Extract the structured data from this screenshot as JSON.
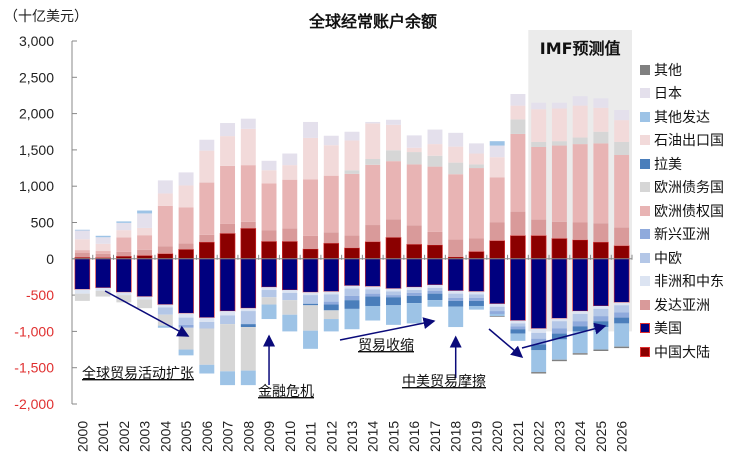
{
  "chart_data": {
    "type": "bar",
    "stacked": true,
    "title": "全球经常账户余额",
    "unit_label": "（十亿美元）",
    "xlabel": "",
    "ylabel": "十亿美元",
    "ylim": [
      -2000,
      3000
    ],
    "yticks": [
      "3,000",
      "2,500",
      "2,000",
      "1,500",
      "1,000",
      "500",
      "0",
      "-500",
      "-1,000",
      "-1,500",
      "-2,000"
    ],
    "ytick_values": [
      3000,
      2500,
      2000,
      1500,
      1000,
      500,
      0,
      -500,
      -1000,
      -1500,
      -2000
    ],
    "negative_tick_color": "#e03030",
    "categories": [
      "2000",
      "2001",
      "2002",
      "2003",
      "2004",
      "2005",
      "2006",
      "2007",
      "2008",
      "2009",
      "2010",
      "2011",
      "2012",
      "2013",
      "2014",
      "2015",
      "2016",
      "2017",
      "2018",
      "2019",
      "2020",
      "2021",
      "2022",
      "2023",
      "2024",
      "2025",
      "2026"
    ],
    "forecast_region": {
      "label": "IMF预测值",
      "from": "2022",
      "to": "2026"
    },
    "legend_position": "right",
    "series": [
      {
        "name": "中国大陆",
        "color": "#8b0000",
        "values": [
          20,
          17,
          35,
          45,
          70,
          130,
          230,
          350,
          420,
          240,
          240,
          135,
          215,
          150,
          235,
          295,
          200,
          190,
          25,
          100,
          250,
          320,
          320,
          280,
          260,
          230,
          180
        ]
      },
      {
        "name": "发达亚洲",
        "color": "#d99a9a",
        "values": [
          60,
          50,
          60,
          80,
          100,
          80,
          100,
          130,
          90,
          150,
          180,
          180,
          150,
          170,
          230,
          250,
          260,
          180,
          240,
          180,
          250,
          330,
          220,
          230,
          240,
          260,
          250
        ]
      },
      {
        "name": "欧洲债权国",
        "color": "#e8b4b4",
        "values": [
          40,
          40,
          200,
          200,
          560,
          500,
          720,
          800,
          780,
          650,
          670,
          780,
          780,
          850,
          830,
          800,
          840,
          900,
          900,
          970,
          620,
          1070,
          1000,
          1050,
          1080,
          1100,
          1000
        ]
      },
      {
        "name": "欧洲债务国",
        "color": "#d6d6d6",
        "values": [
          0,
          0,
          0,
          0,
          0,
          0,
          0,
          0,
          0,
          0,
          0,
          0,
          0,
          50,
          80,
          150,
          170,
          150,
          160,
          50,
          0,
          200,
          70,
          60,
          90,
          160,
          180
        ]
      },
      {
        "name": "石油出口国",
        "color": "#f2dada",
        "values": [
          150,
          100,
          100,
          100,
          170,
          300,
          440,
          410,
          500,
          180,
          200,
          570,
          420,
          410,
          490,
          350,
          60,
          160,
          220,
          150,
          280,
          190,
          450,
          450,
          440,
          330,
          300
        ]
      },
      {
        "name": "日本",
        "color": "#e4e0ec",
        "values": [
          120,
          90,
          100,
          200,
          180,
          180,
          150,
          180,
          140,
          130,
          160,
          220,
          130,
          120,
          20,
          70,
          170,
          200,
          190,
          140,
          160,
          160,
          90,
          80,
          130,
          130,
          140
        ]
      },
      {
        "name": "其他发达",
        "color": "#9dc3e6",
        "values": [
          10,
          20,
          20,
          40,
          0,
          0,
          0,
          0,
          0,
          0,
          0,
          0,
          0,
          0,
          0,
          0,
          0,
          0,
          0,
          0,
          60,
          0,
          0,
          0,
          0,
          0,
          0
        ]
      },
      {
        "name": "拉美",
        "color": "#4a7ebb",
        "values": [
          0,
          0,
          0,
          0,
          0,
          0,
          0,
          0,
          0,
          0,
          0,
          0,
          0,
          0,
          0,
          0,
          0,
          0,
          0,
          0,
          0,
          0,
          0,
          0,
          0,
          0,
          0
        ]
      },
      {
        "name": "其他",
        "color": "#808080",
        "values": [
          0,
          0,
          0,
          0,
          0,
          0,
          0,
          0,
          0,
          0,
          0,
          0,
          0,
          0,
          0,
          0,
          0,
          0,
          0,
          0,
          0,
          0,
          0,
          0,
          0,
          0,
          0
        ]
      }
    ],
    "negative_series": [
      {
        "name": "美国",
        "color": "#00007f",
        "values": [
          -420,
          -400,
          -460,
          -520,
          -630,
          -750,
          -810,
          -720,
          -680,
          -390,
          -430,
          -460,
          -450,
          -370,
          -380,
          -410,
          -390,
          -360,
          -440,
          -450,
          -620,
          -850,
          -960,
          -820,
          -720,
          -650,
          -600
        ]
      },
      {
        "name": "非洲和中东",
        "color": "#dce4f2",
        "values": [
          -60,
          -40,
          -40,
          -40,
          -40,
          -60,
          -60,
          -60,
          -40,
          -40,
          -40,
          -40,
          -40,
          -40,
          -40,
          -40,
          -40,
          -40,
          -40,
          -40,
          -40,
          -40,
          -60,
          -40,
          -40,
          -40,
          -40
        ]
      },
      {
        "name": "中欧",
        "color": "#b4c7e7",
        "values": [
          0,
          0,
          0,
          0,
          -100,
          -100,
          -90,
          -120,
          -180,
          -100,
          -100,
          -120,
          -100,
          -100,
          -60,
          -50,
          -40,
          -40,
          -60,
          -50,
          -60,
          -40,
          -80,
          -100,
          -100,
          -100,
          -100
        ]
      },
      {
        "name": "新兴亚洲",
        "color": "#8faadc",
        "values": [
          0,
          0,
          0,
          0,
          0,
          -40,
          0,
          0,
          0,
          0,
          0,
          0,
          -40,
          -60,
          -40,
          -30,
          -40,
          -40,
          -40,
          -40,
          -40,
          -40,
          -80,
          -70,
          -70,
          -70,
          -70
        ]
      },
      {
        "name": "拉美",
        "color": "#4a7ebb",
        "values": [
          0,
          0,
          0,
          0,
          0,
          0,
          0,
          0,
          -40,
          0,
          0,
          -20,
          -80,
          -120,
          -130,
          -110,
          -100,
          -90,
          -80,
          -70,
          0,
          -60,
          -80,
          -80,
          -70,
          -80,
          -80
        ]
      },
      {
        "name": "欧洲债务国",
        "color": "#d6d6d6",
        "values": [
          -100,
          -80,
          -100,
          -120,
          -150,
          -300,
          -500,
          -650,
          -600,
          -100,
          -200,
          -350,
          -120,
          0,
          0,
          0,
          0,
          0,
          0,
          0,
          0,
          0,
          0,
          0,
          0,
          0,
          0
        ]
      },
      {
        "name": "其他发达",
        "color": "#9dc3e6",
        "values": [
          0,
          0,
          0,
          0,
          -30,
          -80,
          -120,
          -190,
          -200,
          -200,
          -230,
          -250,
          -170,
          -280,
          -200,
          -270,
          -280,
          -90,
          -280,
          -50,
          -30,
          -100,
          -300,
          -280,
          -300,
          -310,
          -320
        ]
      },
      {
        "name": "其他",
        "color": "#808080",
        "values": [
          0,
          0,
          0,
          0,
          0,
          0,
          0,
          0,
          0,
          0,
          0,
          0,
          0,
          0,
          0,
          0,
          0,
          0,
          0,
          0,
          -10,
          0,
          -20,
          -20,
          -20,
          -20,
          -20
        ]
      }
    ],
    "annotations": [
      {
        "text": "全球贸易活动扩张",
        "from_year": "2001",
        "to_year": "2005"
      },
      {
        "text": "金融危机",
        "year": "2009"
      },
      {
        "text": "贸易收缩",
        "from_year": "2013",
        "to_year": "2017"
      },
      {
        "text": "中美贸易摩擦",
        "year": "2018"
      },
      {
        "text": "",
        "from_year": "2020",
        "to_year": "2022"
      },
      {
        "text": "",
        "from_year": "2022",
        "to_year": "2025"
      }
    ]
  },
  "legend": [
    {
      "name": "其他",
      "color": "#808080"
    },
    {
      "name": "日本",
      "color": "#e4e0ec"
    },
    {
      "name": "其他发达",
      "color": "#9dc3e6"
    },
    {
      "name": "石油出口国",
      "color": "#f2dada"
    },
    {
      "name": "拉美",
      "color": "#4a7ebb"
    },
    {
      "name": "欧洲债务国",
      "color": "#d6d6d6"
    },
    {
      "name": "欧洲债权国",
      "color": "#e8b4b4"
    },
    {
      "name": "新兴亚洲",
      "color": "#8faadc"
    },
    {
      "name": "中欧",
      "color": "#b4c7e7"
    },
    {
      "name": "非洲和中东",
      "color": "#dce4f2"
    },
    {
      "name": "发达亚洲",
      "color": "#d99a9a"
    },
    {
      "name": "美国",
      "color": "#00007f"
    },
    {
      "name": "中国大陆",
      "color": "#8b0000"
    }
  ]
}
